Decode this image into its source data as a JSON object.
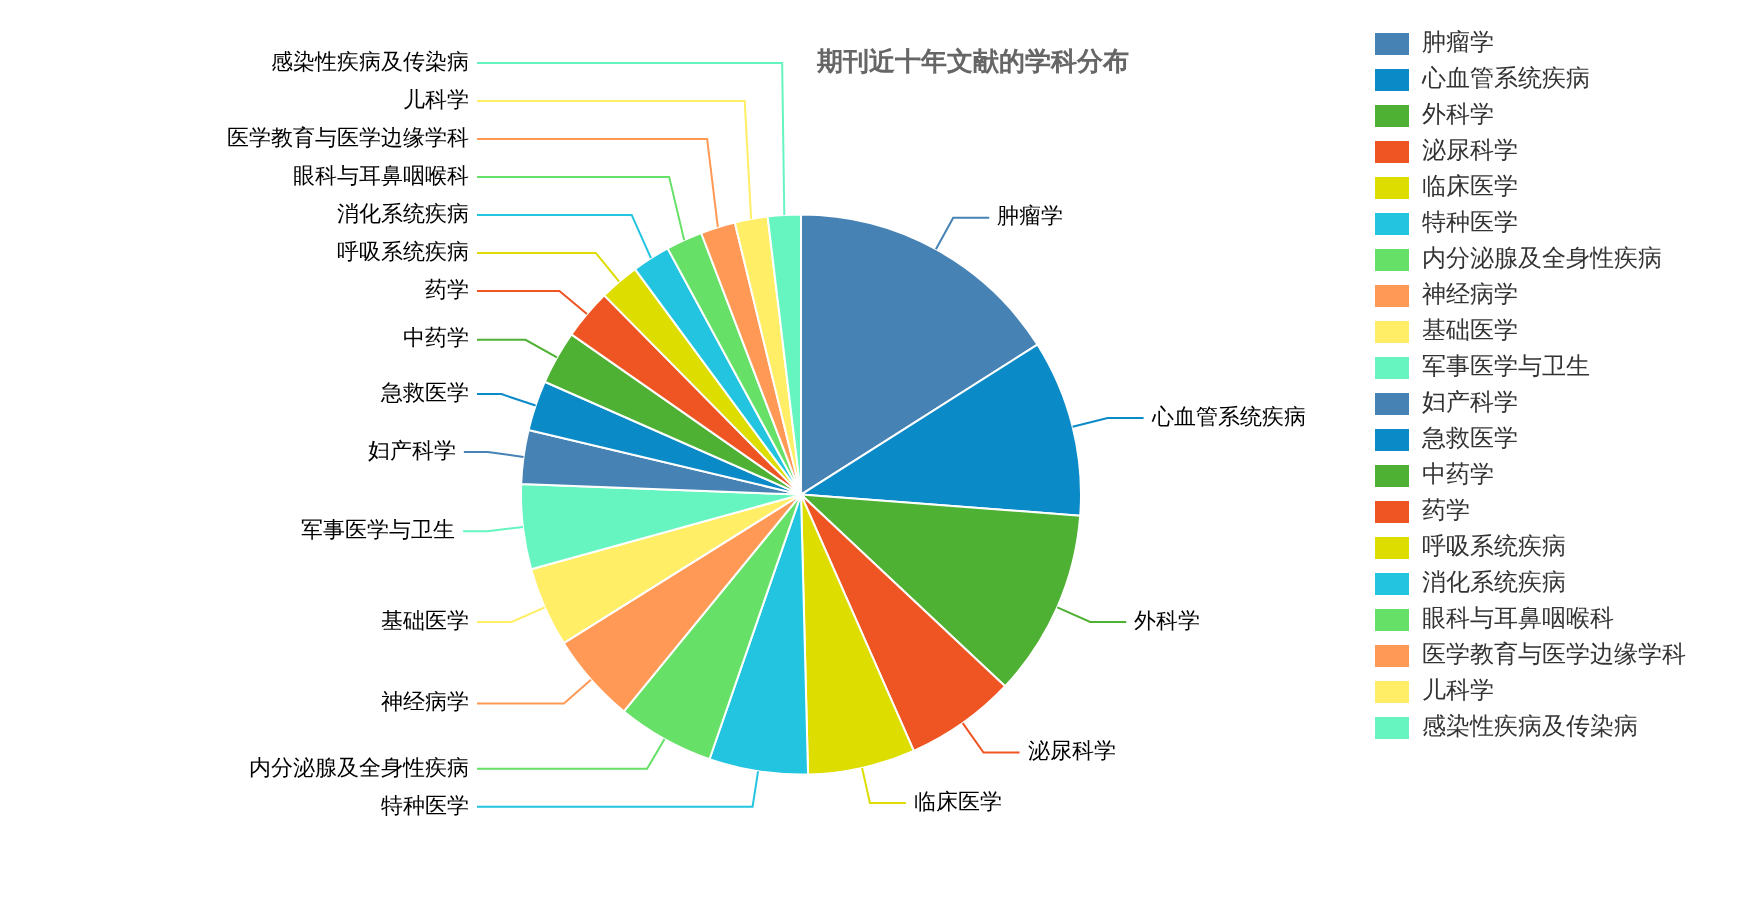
{
  "chart_data": {
    "type": "pie",
    "title": "期刊近十年文献的学科分布",
    "categories": [
      "肿瘤学",
      "心血管系统疾病",
      "外科学",
      "泌尿科学",
      "临床医学",
      "特种医学",
      "内分泌腺及全身性疾病",
      "神经病学",
      "基础医学",
      "军事医学与卫生",
      "妇产科学",
      "急救医学",
      "中药学",
      "药学",
      "呼吸系统疾病",
      "消化系统疾病",
      "眼科与耳鼻咽喉科",
      "医学教育与医学边缘学科",
      "儿科学",
      "感染性疾病及传染病"
    ],
    "values": [
      16.0,
      10.2,
      10.8,
      6.4,
      6.2,
      5.7,
      5.6,
      5.2,
      4.6,
      4.9,
      3.1,
      2.9,
      3.1,
      2.9,
      2.3,
      2.2,
      2.1,
      2.0,
      1.9,
      1.9
    ],
    "colors": [
      "#4682b4",
      "#0a8bc8",
      "#4fb133",
      "#ee5522",
      "#dddd00",
      "#22c4e0",
      "#66e066",
      "#ff9955",
      "#ffee66",
      "#66f5c0",
      "#4682b4",
      "#0a8bc8",
      "#4fb133",
      "#ee5522",
      "#dddd00",
      "#22c4e0",
      "#66e066",
      "#ff9955",
      "#ffee66",
      "#66f5c0"
    ],
    "legend": "right"
  }
}
